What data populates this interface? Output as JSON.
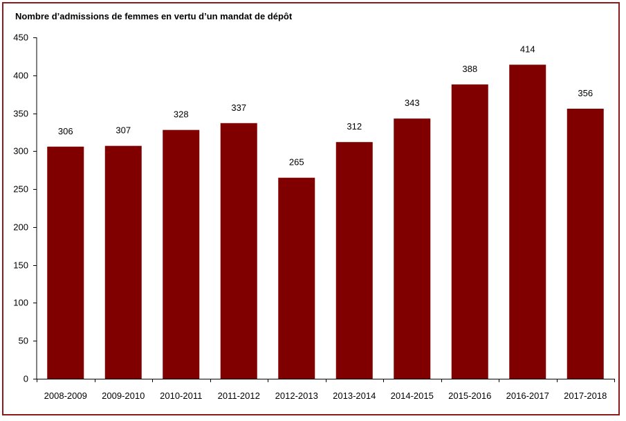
{
  "chart_data": {
    "type": "bar",
    "title": "Nombre d’admissions de femmes en vertu d’un mandat de dépôt",
    "xlabel": "",
    "ylabel": "",
    "categories": [
      "2008-2009",
      "2009-2010",
      "2010-2011",
      "2011-2012",
      "2012-2013",
      "2013-2014",
      "2014-2015",
      "2015-2016",
      "2016-2017",
      "2017-2018"
    ],
    "values": [
      306,
      307,
      328,
      337,
      265,
      312,
      343,
      388,
      414,
      356
    ],
    "ylim": [
      0,
      450
    ],
    "yticks": [
      0,
      50,
      100,
      150,
      200,
      250,
      300,
      350,
      400,
      450
    ],
    "grid": false,
    "legend": "none",
    "bar_color": "#800000",
    "data_labels": true
  },
  "colors": {
    "bar": "#800000",
    "frame_border": "#8b1a1a",
    "axis": "#000000"
  }
}
